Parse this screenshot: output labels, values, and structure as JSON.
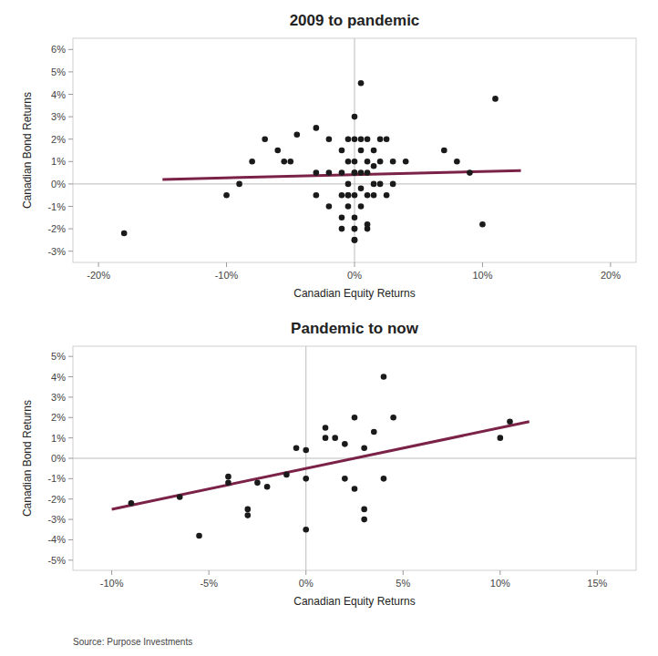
{
  "chart_data": [
    {
      "type": "scatter",
      "title": "2009 to pandemic",
      "xlabel": "Canadian Equity Returns",
      "ylabel": "Canadian Bond Returns",
      "grid": false,
      "xlim": [
        -0.22,
        0.22
      ],
      "ylim": [
        -0.035,
        0.065
      ],
      "xticks": [
        {
          "value": -0.2,
          "label": "-20%"
        },
        {
          "value": -0.1,
          "label": "-10%"
        },
        {
          "value": 0.0,
          "label": "0%"
        },
        {
          "value": 0.1,
          "label": "10%"
        },
        {
          "value": 0.2,
          "label": "20%"
        }
      ],
      "yticks": [
        {
          "value": -0.03,
          "label": "-3%"
        },
        {
          "value": -0.02,
          "label": "-2%"
        },
        {
          "value": -0.01,
          "label": "-1%"
        },
        {
          "value": 0.0,
          "label": "0%"
        },
        {
          "value": 0.01,
          "label": "1%"
        },
        {
          "value": 0.02,
          "label": "2%"
        },
        {
          "value": 0.03,
          "label": "3%"
        },
        {
          "value": 0.04,
          "label": "4%"
        },
        {
          "value": 0.05,
          "label": "5%"
        },
        {
          "value": 0.06,
          "label": "6%"
        }
      ],
      "series": [
        {
          "type": "scatter",
          "color": "#1a1a1a",
          "x": [
            -0.18,
            -0.045,
            -0.07,
            -0.06,
            -0.055,
            -0.05,
            -0.03,
            -0.03,
            -0.03,
            -0.02,
            -0.02,
            -0.02,
            -0.01,
            -0.01,
            -0.01,
            -0.01,
            -0.005,
            -0.005,
            -0.005,
            -0.005,
            -0.005,
            0.0,
            0.0,
            0.0,
            0.0,
            0.0,
            0.0,
            0.0,
            0.005,
            0.005,
            0.005,
            0.005,
            0.005,
            0.01,
            0.01,
            0.01,
            0.01,
            0.01,
            0.015,
            0.015,
            0.015,
            0.015,
            0.02,
            0.02,
            0.02,
            0.025,
            0.025,
            0.03,
            0.03,
            0.04,
            0.005,
            0.0,
            0.01,
            0.0,
            -0.005,
            0.07,
            0.08,
            0.09,
            0.1,
            0.11,
            -0.08,
            -0.09,
            -0.1,
            0.0,
            -0.01,
            0.0
          ],
          "values": [
            -0.022,
            0.022,
            0.02,
            0.015,
            0.01,
            0.01,
            0.025,
            0.005,
            -0.005,
            0.02,
            0.005,
            -0.01,
            0.015,
            0.005,
            -0.005,
            -0.015,
            0.02,
            0.01,
            0.0,
            -0.005,
            -0.01,
            0.03,
            0.02,
            0.01,
            0.005,
            -0.005,
            -0.015,
            -0.02,
            0.02,
            0.015,
            0.005,
            -0.002,
            -0.01,
            0.02,
            0.01,
            0.005,
            -0.005,
            -0.02,
            0.015,
            0.008,
            0.0,
            -0.005,
            0.02,
            0.01,
            0.0,
            0.02,
            -0.005,
            0.01,
            0.0,
            0.01,
            0.045,
            -0.025,
            -0.018,
            -0.02,
            -0.005,
            0.015,
            0.01,
            0.005,
            -0.018,
            0.038,
            0.01,
            0.0,
            -0.005,
            -0.025,
            -0.02,
            0.005
          ]
        },
        {
          "type": "line",
          "color": "#7B2248",
          "x": [
            -0.15,
            0.13
          ],
          "values": [
            0.002,
            0.006
          ]
        }
      ]
    },
    {
      "type": "scatter",
      "title": "Pandemic to now",
      "xlabel": "Canadian Equity Returns",
      "ylabel": "Canadian Bond Returns",
      "grid": false,
      "xlim": [
        -0.12,
        0.17
      ],
      "ylim": [
        -0.055,
        0.055
      ],
      "xticks": [
        {
          "value": -0.1,
          "label": "-10%"
        },
        {
          "value": -0.05,
          "label": "-5%"
        },
        {
          "value": 0.0,
          "label": "0%"
        },
        {
          "value": 0.05,
          "label": "5%"
        },
        {
          "value": 0.1,
          "label": "10%"
        },
        {
          "value": 0.15,
          "label": "15%"
        }
      ],
      "yticks": [
        {
          "value": -0.05,
          "label": "-5%"
        },
        {
          "value": -0.04,
          "label": "-4%"
        },
        {
          "value": -0.03,
          "label": "-3%"
        },
        {
          "value": -0.02,
          "label": "-2%"
        },
        {
          "value": -0.01,
          "label": "-1%"
        },
        {
          "value": 0.0,
          "label": "0%"
        },
        {
          "value": 0.01,
          "label": "1%"
        },
        {
          "value": 0.02,
          "label": "2%"
        },
        {
          "value": 0.03,
          "label": "3%"
        },
        {
          "value": 0.04,
          "label": "4%"
        },
        {
          "value": 0.05,
          "label": "5%"
        }
      ],
      "series": [
        {
          "type": "scatter",
          "color": "#1a1a1a",
          "x": [
            -0.09,
            -0.065,
            -0.055,
            -0.04,
            -0.04,
            -0.03,
            -0.03,
            -0.025,
            -0.02,
            -0.01,
            -0.005,
            0.0,
            0.0,
            0.0,
            0.01,
            0.01,
            0.015,
            0.02,
            0.02,
            0.025,
            0.025,
            0.03,
            0.03,
            0.03,
            0.035,
            0.04,
            0.04,
            0.045,
            0.1,
            0.105
          ],
          "values": [
            -0.022,
            -0.019,
            -0.038,
            -0.009,
            -0.012,
            -0.028,
            -0.025,
            -0.012,
            -0.014,
            -0.008,
            0.005,
            0.004,
            -0.01,
            -0.035,
            0.01,
            0.015,
            0.01,
            0.007,
            -0.01,
            0.02,
            -0.015,
            0.005,
            -0.025,
            -0.03,
            0.013,
            0.04,
            -0.01,
            0.02,
            0.01,
            0.018
          ]
        },
        {
          "type": "line",
          "color": "#7B2248",
          "x": [
            -0.1,
            0.115
          ],
          "values": [
            -0.025,
            0.018
          ]
        }
      ],
      "annotation": "Source: Purpose Investments"
    }
  ]
}
